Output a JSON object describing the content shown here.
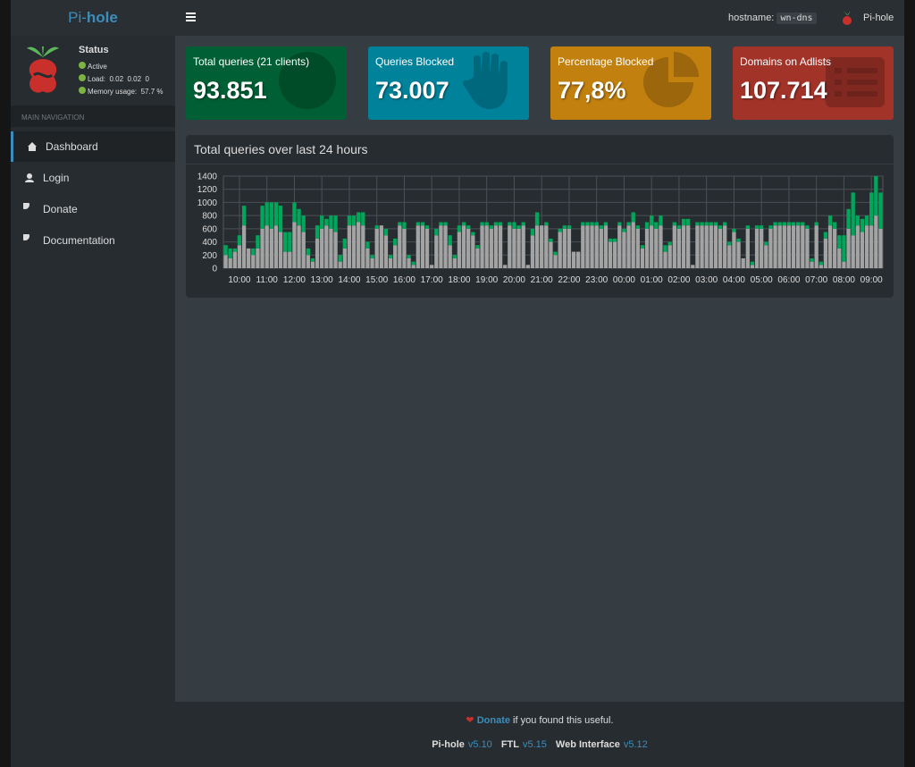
{
  "header": {
    "brand_prefix": "Pi-",
    "brand": "hole",
    "hostname_label": "hostname:",
    "hostname": "wn-dns",
    "user": "Pi-hole"
  },
  "sidebar": {
    "status_title": "Status",
    "status": "Active",
    "load": "Load:  0.02  0.02  0",
    "memory": "Memory usage:  57.7 %",
    "nav_header": "MAIN NAVIGATION",
    "nav": [
      "Dashboard",
      "Login",
      "Donate",
      "Documentation"
    ]
  },
  "stats": [
    {
      "title": "Total queries (21 clients)",
      "value": "93.851"
    },
    {
      "title": "Queries Blocked",
      "value": "73.007"
    },
    {
      "title": "Percentage Blocked",
      "value": "77,8%"
    },
    {
      "title": "Domains on Adlists",
      "value": "107.714"
    }
  ],
  "footer": {
    "donate": "Donate",
    "donate_text": " if you found this useful.",
    "versions": [
      {
        "name": "Pi-hole",
        "version": "v5.10"
      },
      {
        "name": "FTL",
        "version": "v5.15"
      },
      {
        "name": "Web Interface",
        "version": "v5.12"
      }
    ]
  },
  "chart_data": {
    "type": "bar",
    "stacked": true,
    "title": "Total queries over last 24 hours",
    "categories": [
      null,
      null,
      null,
      "10:00",
      null,
      null,
      null,
      null,
      null,
      "11:00",
      null,
      null,
      null,
      null,
      null,
      "12:00",
      null,
      null,
      null,
      null,
      null,
      "13:00",
      null,
      null,
      null,
      null,
      null,
      "14:00",
      null,
      null,
      null,
      null,
      null,
      "15:00",
      null,
      null,
      null,
      null,
      null,
      "16:00",
      null,
      null,
      null,
      null,
      null,
      "17:00",
      null,
      null,
      null,
      null,
      null,
      "18:00",
      null,
      null,
      null,
      null,
      null,
      "19:00",
      null,
      null,
      null,
      null,
      null,
      "20:00",
      null,
      null,
      null,
      null,
      null,
      "21:00",
      null,
      null,
      null,
      null,
      null,
      "22:00",
      null,
      null,
      null,
      null,
      null,
      "23:00",
      null,
      null,
      null,
      null,
      null,
      "00:00",
      null,
      null,
      null,
      null,
      null,
      "01:00",
      null,
      null,
      null,
      null,
      null,
      "02:00",
      null,
      null,
      null,
      null,
      null,
      "03:00",
      null,
      null,
      null,
      null,
      null,
      "04:00",
      null,
      null,
      null,
      null,
      null,
      "05:00",
      null,
      null,
      null,
      null,
      null,
      "06:00",
      null,
      null,
      null,
      null,
      null,
      "07:00",
      null,
      null,
      null,
      null,
      null,
      "08:00",
      null,
      null,
      null,
      null,
      null,
      "09:00",
      null,
      null
    ],
    "series": [
      {
        "color": "#a3a3a3",
        "values": [
          200,
          150,
          250,
          350,
          650,
          300,
          200,
          300,
          600,
          650,
          600,
          650,
          550,
          250,
          250,
          700,
          650,
          550,
          200,
          100,
          450,
          600,
          650,
          600,
          550,
          100,
          300,
          650,
          650,
          700,
          650,
          300,
          150,
          600,
          650,
          500,
          150,
          350,
          650,
          600,
          150,
          50,
          650,
          650,
          600,
          50,
          500,
          650,
          650,
          350,
          150,
          550,
          650,
          600,
          500,
          300,
          650,
          650,
          600,
          650,
          650,
          50,
          650,
          600,
          600,
          650,
          50,
          500,
          650,
          650,
          650,
          400,
          200,
          550,
          600,
          600,
          250,
          250,
          650,
          650,
          650,
          650,
          600,
          650,
          400,
          400,
          650,
          550,
          650,
          700,
          600,
          300,
          600,
          650,
          600,
          650,
          250,
          350,
          650,
          600,
          650,
          650,
          50,
          650,
          650,
          650,
          650,
          650,
          600,
          650,
          350,
          550,
          400,
          150,
          600,
          50,
          600,
          600,
          350,
          600,
          650,
          650,
          650,
          650,
          650,
          650,
          650,
          600,
          100,
          650,
          50,
          450,
          650,
          600,
          300,
          100,
          600,
          500,
          650,
          550,
          650,
          650,
          800,
          600
        ]
      },
      {
        "color": "#00a65a",
        "values": [
          150,
          150,
          50,
          150,
          300,
          0,
          100,
          200,
          350,
          350,
          400,
          350,
          400,
          300,
          300,
          300,
          250,
          250,
          100,
          50,
          200,
          200,
          100,
          200,
          250,
          100,
          150,
          150,
          150,
          150,
          200,
          100,
          50,
          50,
          0,
          100,
          50,
          100,
          50,
          100,
          50,
          50,
          50,
          50,
          50,
          0,
          100,
          50,
          50,
          150,
          50,
          100,
          50,
          50,
          50,
          50,
          50,
          50,
          50,
          50,
          50,
          0,
          50,
          100,
          50,
          50,
          0,
          100,
          200,
          0,
          50,
          50,
          50,
          50,
          50,
          50,
          0,
          0,
          50,
          50,
          50,
          50,
          50,
          50,
          50,
          50,
          50,
          50,
          50,
          150,
          50,
          50,
          100,
          150,
          100,
          150,
          100,
          50,
          50,
          50,
          100,
          100,
          0,
          50,
          50,
          50,
          50,
          50,
          50,
          50,
          50,
          50,
          50,
          0,
          50,
          50,
          50,
          50,
          50,
          50,
          50,
          50,
          50,
          50,
          50,
          50,
          50,
          50,
          50,
          50,
          50,
          100,
          150,
          100,
          200,
          400,
          300,
          650,
          150,
          200,
          150,
          500,
          600,
          550
        ]
      }
    ],
    "ylim": [
      0,
      1400
    ],
    "yticks": [
      0,
      200,
      400,
      600,
      800,
      1000,
      1200,
      1400
    ],
    "grid": true
  }
}
